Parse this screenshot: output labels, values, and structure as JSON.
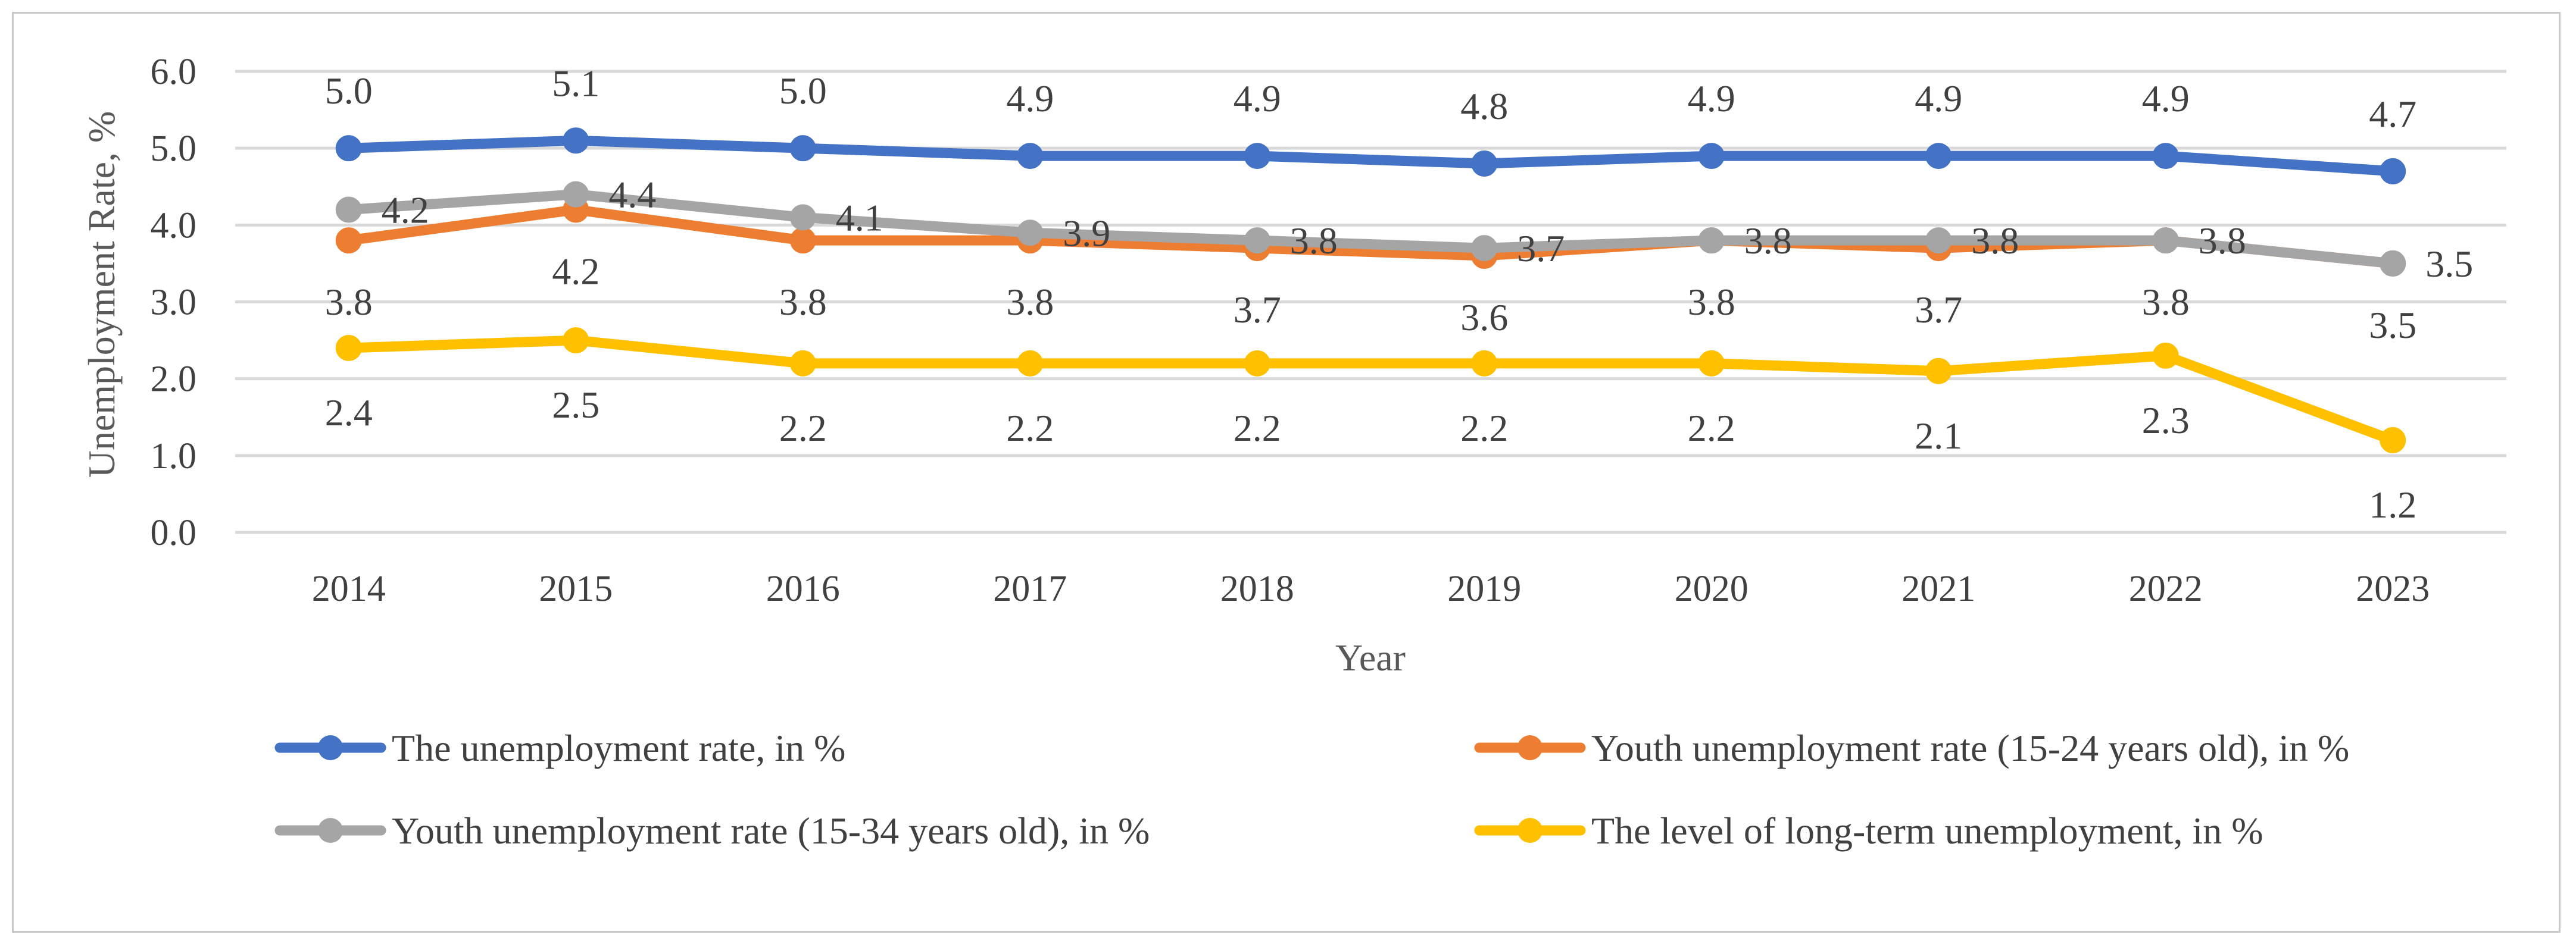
{
  "chart_data": {
    "type": "line",
    "title": "",
    "xlabel": "Year",
    "ylabel": "Unemployment Rate, %",
    "ylim": [
      0,
      6
    ],
    "yticks": [
      "0.0",
      "1.0",
      "2.0",
      "3.0",
      "4.0",
      "5.0",
      "6.0"
    ],
    "grid": true,
    "legend_position": "bottom",
    "categories": [
      "2014",
      "2015",
      "2016",
      "2017",
      "2018",
      "2019",
      "2020",
      "2021",
      "2022",
      "2023"
    ],
    "series": [
      {
        "name": "The unemployment rate, in %",
        "color": "#4472c4",
        "values": [
          5.0,
          5.1,
          5.0,
          4.9,
          4.9,
          4.8,
          4.9,
          4.9,
          4.9,
          4.7
        ],
        "labels": [
          "5.0",
          "5.1",
          "5.0",
          "4.9",
          "4.9",
          "4.8",
          "4.9",
          "4.9",
          "4.9",
          "4.7"
        ]
      },
      {
        "name": "Youth unemployment rate (15-24 years old), in %",
        "color": "#ed7d31",
        "values": [
          3.8,
          4.2,
          3.8,
          3.8,
          3.7,
          3.6,
          3.8,
          3.7,
          3.8,
          3.5
        ],
        "labels": [
          "3.8",
          "4.2",
          "3.8",
          "3.8",
          "3.7",
          "3.6",
          "3.8",
          "3.7",
          "3.8",
          "3.5"
        ]
      },
      {
        "name": "Youth unemployment rate (15-34 years old), in %",
        "color": "#a5a5a5",
        "values": [
          4.2,
          4.4,
          4.1,
          3.9,
          3.8,
          3.7,
          3.8,
          3.8,
          3.8,
          3.5
        ],
        "labels": [
          "4.2",
          "4.4",
          "4.1",
          "3.9",
          "3.8",
          "3.7",
          "3.8",
          "3.8",
          "3.8",
          "3.5"
        ]
      },
      {
        "name": "The level of long-term unemployment, in %",
        "color": "#ffc000",
        "values": [
          2.4,
          2.5,
          2.2,
          2.2,
          2.2,
          2.2,
          2.2,
          2.1,
          2.3,
          1.2
        ],
        "labels": [
          "2.4",
          "2.5",
          "2.2",
          "2.2",
          "2.2",
          "2.2",
          "2.2",
          "2.1",
          "2.3",
          "1.2"
        ]
      }
    ]
  }
}
